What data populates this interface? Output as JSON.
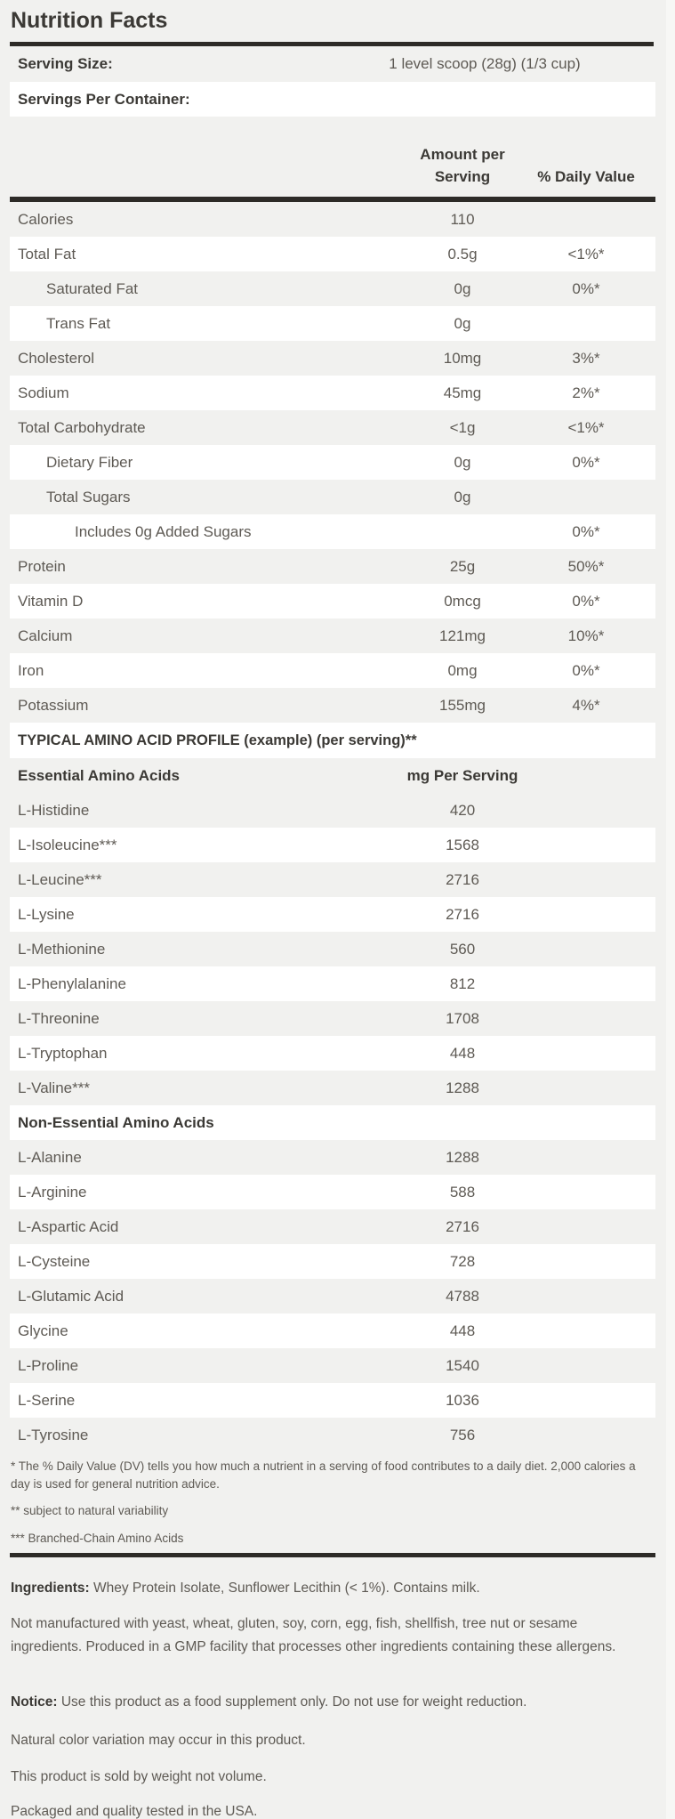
{
  "colors": {
    "background": "#f1f1ef",
    "stripe_white": "#ffffff",
    "divider_bar": "#2d2b27",
    "heading_text": "#3b3935",
    "body_text": "#5e5a54"
  },
  "header": {
    "title": "Nutrition Facts"
  },
  "serving": {
    "size_label": "Serving Size:",
    "size_value": "1 level scoop (28g) (1/3 cup)",
    "per_container_label": "Servings Per Container:"
  },
  "columns": {
    "amount_line1": "Amount per",
    "amount_line2": "Serving",
    "daily_value": "% Daily Value"
  },
  "nutrients": {
    "rows": [
      {
        "label": "Calories",
        "amount": "110",
        "dv": "",
        "indent": 0
      },
      {
        "label": "Total Fat",
        "amount": "0.5g",
        "dv": "<1%*",
        "indent": 0
      },
      {
        "label": "Saturated Fat",
        "amount": "0g",
        "dv": "0%*",
        "indent": 1
      },
      {
        "label": "Trans Fat",
        "amount": "0g",
        "dv": "",
        "indent": 1
      },
      {
        "label": "Cholesterol",
        "amount": "10mg",
        "dv": "3%*",
        "indent": 0
      },
      {
        "label": "Sodium",
        "amount": "45mg",
        "dv": "2%*",
        "indent": 0
      },
      {
        "label": "Total Carbohydrate",
        "amount": "<1g",
        "dv": "<1%*",
        "indent": 0
      },
      {
        "label": "Dietary Fiber",
        "amount": "0g",
        "dv": "0%*",
        "indent": 1
      },
      {
        "label": "Total Sugars",
        "amount": "0g",
        "dv": "",
        "indent": 1
      },
      {
        "label": "Includes 0g Added Sugars",
        "amount": "",
        "dv": "0%*",
        "indent": 2
      },
      {
        "label": "Protein",
        "amount": "25g",
        "dv": "50%*",
        "indent": 0
      },
      {
        "label": "Vitamin D",
        "amount": "0mcg",
        "dv": "0%*",
        "indent": 0
      },
      {
        "label": "Calcium",
        "amount": "121mg",
        "dv": "10%*",
        "indent": 0
      },
      {
        "label": "Iron",
        "amount": "0mg",
        "dv": "0%*",
        "indent": 0
      },
      {
        "label": "Potassium",
        "amount": "155mg",
        "dv": "4%*",
        "indent": 0
      }
    ]
  },
  "amino": {
    "heading": "TYPICAL AMINO ACID PROFILE (example) (per serving)**",
    "header": {
      "name": "Essential Amino Acids",
      "value": "mg Per Serving"
    },
    "rows": [
      {
        "name": "L-Histidine",
        "value": "420"
      },
      {
        "name": "L-Isoleucine***",
        "value": "1568"
      },
      {
        "name": "L-Leucine***",
        "value": "2716"
      },
      {
        "name": "L-Lysine",
        "value": "2716"
      },
      {
        "name": "L-Methionine",
        "value": "560"
      },
      {
        "name": "L-Phenylalanine",
        "value": "812"
      },
      {
        "name": "L-Threonine",
        "value": "1708"
      },
      {
        "name": "L-Tryptophan",
        "value": "448"
      },
      {
        "name": "L-Valine***",
        "value": "1288"
      },
      {
        "name": "Non-Essential Amino Acids",
        "value": "",
        "subheader": true
      },
      {
        "name": "L-Alanine",
        "value": "1288"
      },
      {
        "name": "L-Arginine",
        "value": "588"
      },
      {
        "name": "L-Aspartic Acid",
        "value": "2716"
      },
      {
        "name": "L-Cysteine",
        "value": "728"
      },
      {
        "name": "L-Glutamic Acid",
        "value": "4788"
      },
      {
        "name": "Glycine",
        "value": "448"
      },
      {
        "name": "L-Proline",
        "value": "1540"
      },
      {
        "name": "L-Serine",
        "value": "1036"
      },
      {
        "name": "L-Tyrosine",
        "value": "756"
      }
    ]
  },
  "footnotes": [
    "* The % Daily Value (DV) tells you how much a nutrient in a serving of food contributes to a daily diet. 2,000 calories a day is used for general nutrition advice.",
    "** subject to natural variability",
    "*** Branched-Chain Amino Acids"
  ],
  "info": {
    "paragraphs": [
      {
        "lead": "Ingredients:",
        "text": " Whey Protein Isolate, Sunflower Lecithin (< 1%). Contains milk."
      },
      {
        "lead": "",
        "text": "Not manufactured with yeast, wheat, gluten, soy, corn, egg, fish, shellfish, tree nut or sesame  ingredients. Produced in a GMP facility that processes other ingredients containing these allergens."
      },
      {
        "lead": "Notice:",
        "text": " Use this product as a food supplement only. Do not use for weight reduction."
      },
      {
        "lead": "",
        "text": "Natural color variation may occur in this product."
      },
      {
        "lead": "",
        "text": "This product is sold by weight not volume."
      },
      {
        "lead": "",
        "text": "Packaged and quality tested in the USA."
      }
    ]
  }
}
